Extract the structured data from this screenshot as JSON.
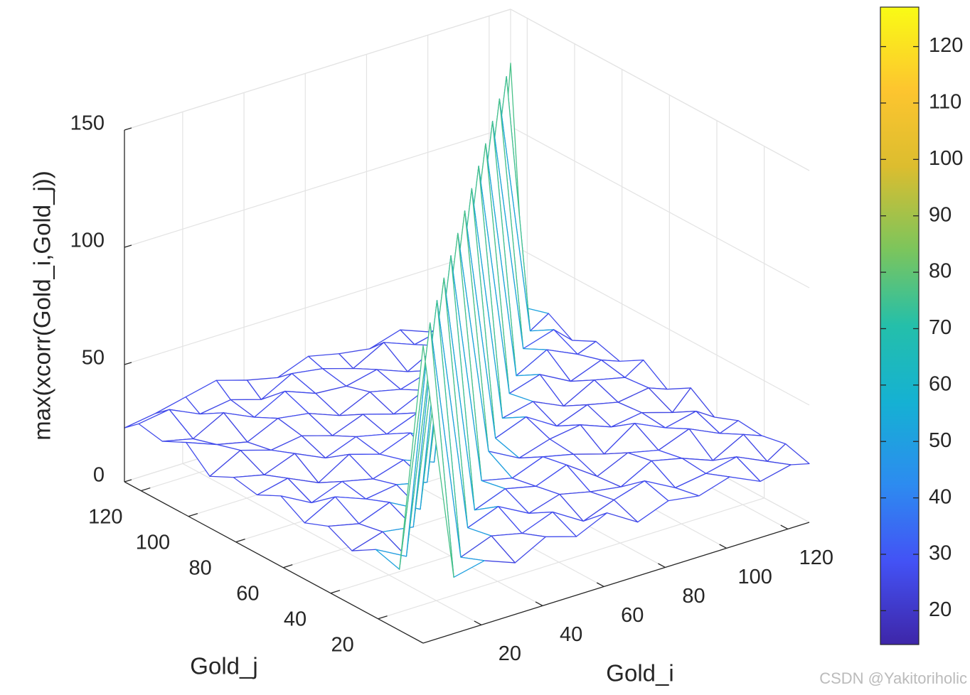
{
  "chart_data": {
    "type": "mesh3d",
    "xlabel": "Gold_i",
    "ylabel": "Gold_j",
    "zlabel": "max(xcorr(Gold_i,Gold_j))",
    "x": [
      1,
      11,
      21,
      31,
      41,
      51,
      61,
      71,
      81,
      91,
      101,
      111,
      121,
      127
    ],
    "y": [
      1,
      11,
      21,
      31,
      41,
      51,
      61,
      71,
      81,
      91,
      101,
      111,
      121,
      127
    ],
    "z": [
      [
        127,
        24,
        27,
        22,
        29,
        25,
        31,
        23,
        28,
        26,
        30,
        24,
        27,
        25
      ],
      [
        26,
        127,
        23,
        28,
        25,
        30,
        22,
        27,
        31,
        24,
        26,
        29,
        23,
        28
      ],
      [
        29,
        22,
        127,
        26,
        31,
        24,
        28,
        25,
        23,
        30,
        27,
        22,
        29,
        26
      ],
      [
        23,
        27,
        25,
        127,
        24,
        29,
        26,
        31,
        22,
        28,
        25,
        30,
        24,
        27
      ],
      [
        28,
        25,
        30,
        23,
        127,
        27,
        24,
        29,
        26,
        22,
        31,
        25,
        28,
        23
      ],
      [
        24,
        31,
        26,
        28,
        25,
        127,
        30,
        23,
        27,
        29,
        24,
        26,
        22,
        30
      ],
      [
        30,
        23,
        28,
        25,
        29,
        24,
        127,
        26,
        31,
        23,
        28,
        25,
        27,
        24
      ],
      [
        25,
        28,
        22,
        30,
        26,
        31,
        23,
        127,
        25,
        28,
        22,
        29,
        26,
        31
      ],
      [
        27,
        24,
        29,
        23,
        28,
        25,
        30,
        24,
        127,
        26,
        30,
        23,
        28,
        25
      ],
      [
        22,
        29,
        25,
        27,
        23,
        28,
        24,
        30,
        26,
        127,
        24,
        31,
        25,
        28
      ],
      [
        31,
        26,
        23,
        29,
        27,
        22,
        28,
        25,
        29,
        24,
        127,
        26,
        30,
        23
      ],
      [
        26,
        23,
        30,
        24,
        31,
        26,
        25,
        28,
        23,
        30,
        25,
        127,
        24,
        29
      ],
      [
        28,
        30,
        24,
        26,
        22,
        29,
        27,
        23,
        30,
        25,
        28,
        24,
        127,
        26
      ],
      [
        23,
        25,
        28,
        31,
        27,
        24,
        29,
        26,
        24,
        28,
        23,
        27,
        25,
        127
      ]
    ],
    "xlim": [
      1,
      127
    ],
    "ylim": [
      1,
      127
    ],
    "zlim": [
      0,
      150
    ],
    "xticks": [
      20,
      40,
      60,
      80,
      100,
      120
    ],
    "yticks": [
      20,
      40,
      60,
      80,
      100,
      120
    ],
    "zticks": [
      0,
      50,
      100,
      150
    ],
    "grid": true,
    "colormap": "parula",
    "clim": [
      14,
      127
    ],
    "cticks": [
      20,
      30,
      40,
      50,
      60,
      70,
      80,
      90,
      100,
      110,
      120
    ]
  },
  "watermark": "CSDN @Yakitoriholic"
}
